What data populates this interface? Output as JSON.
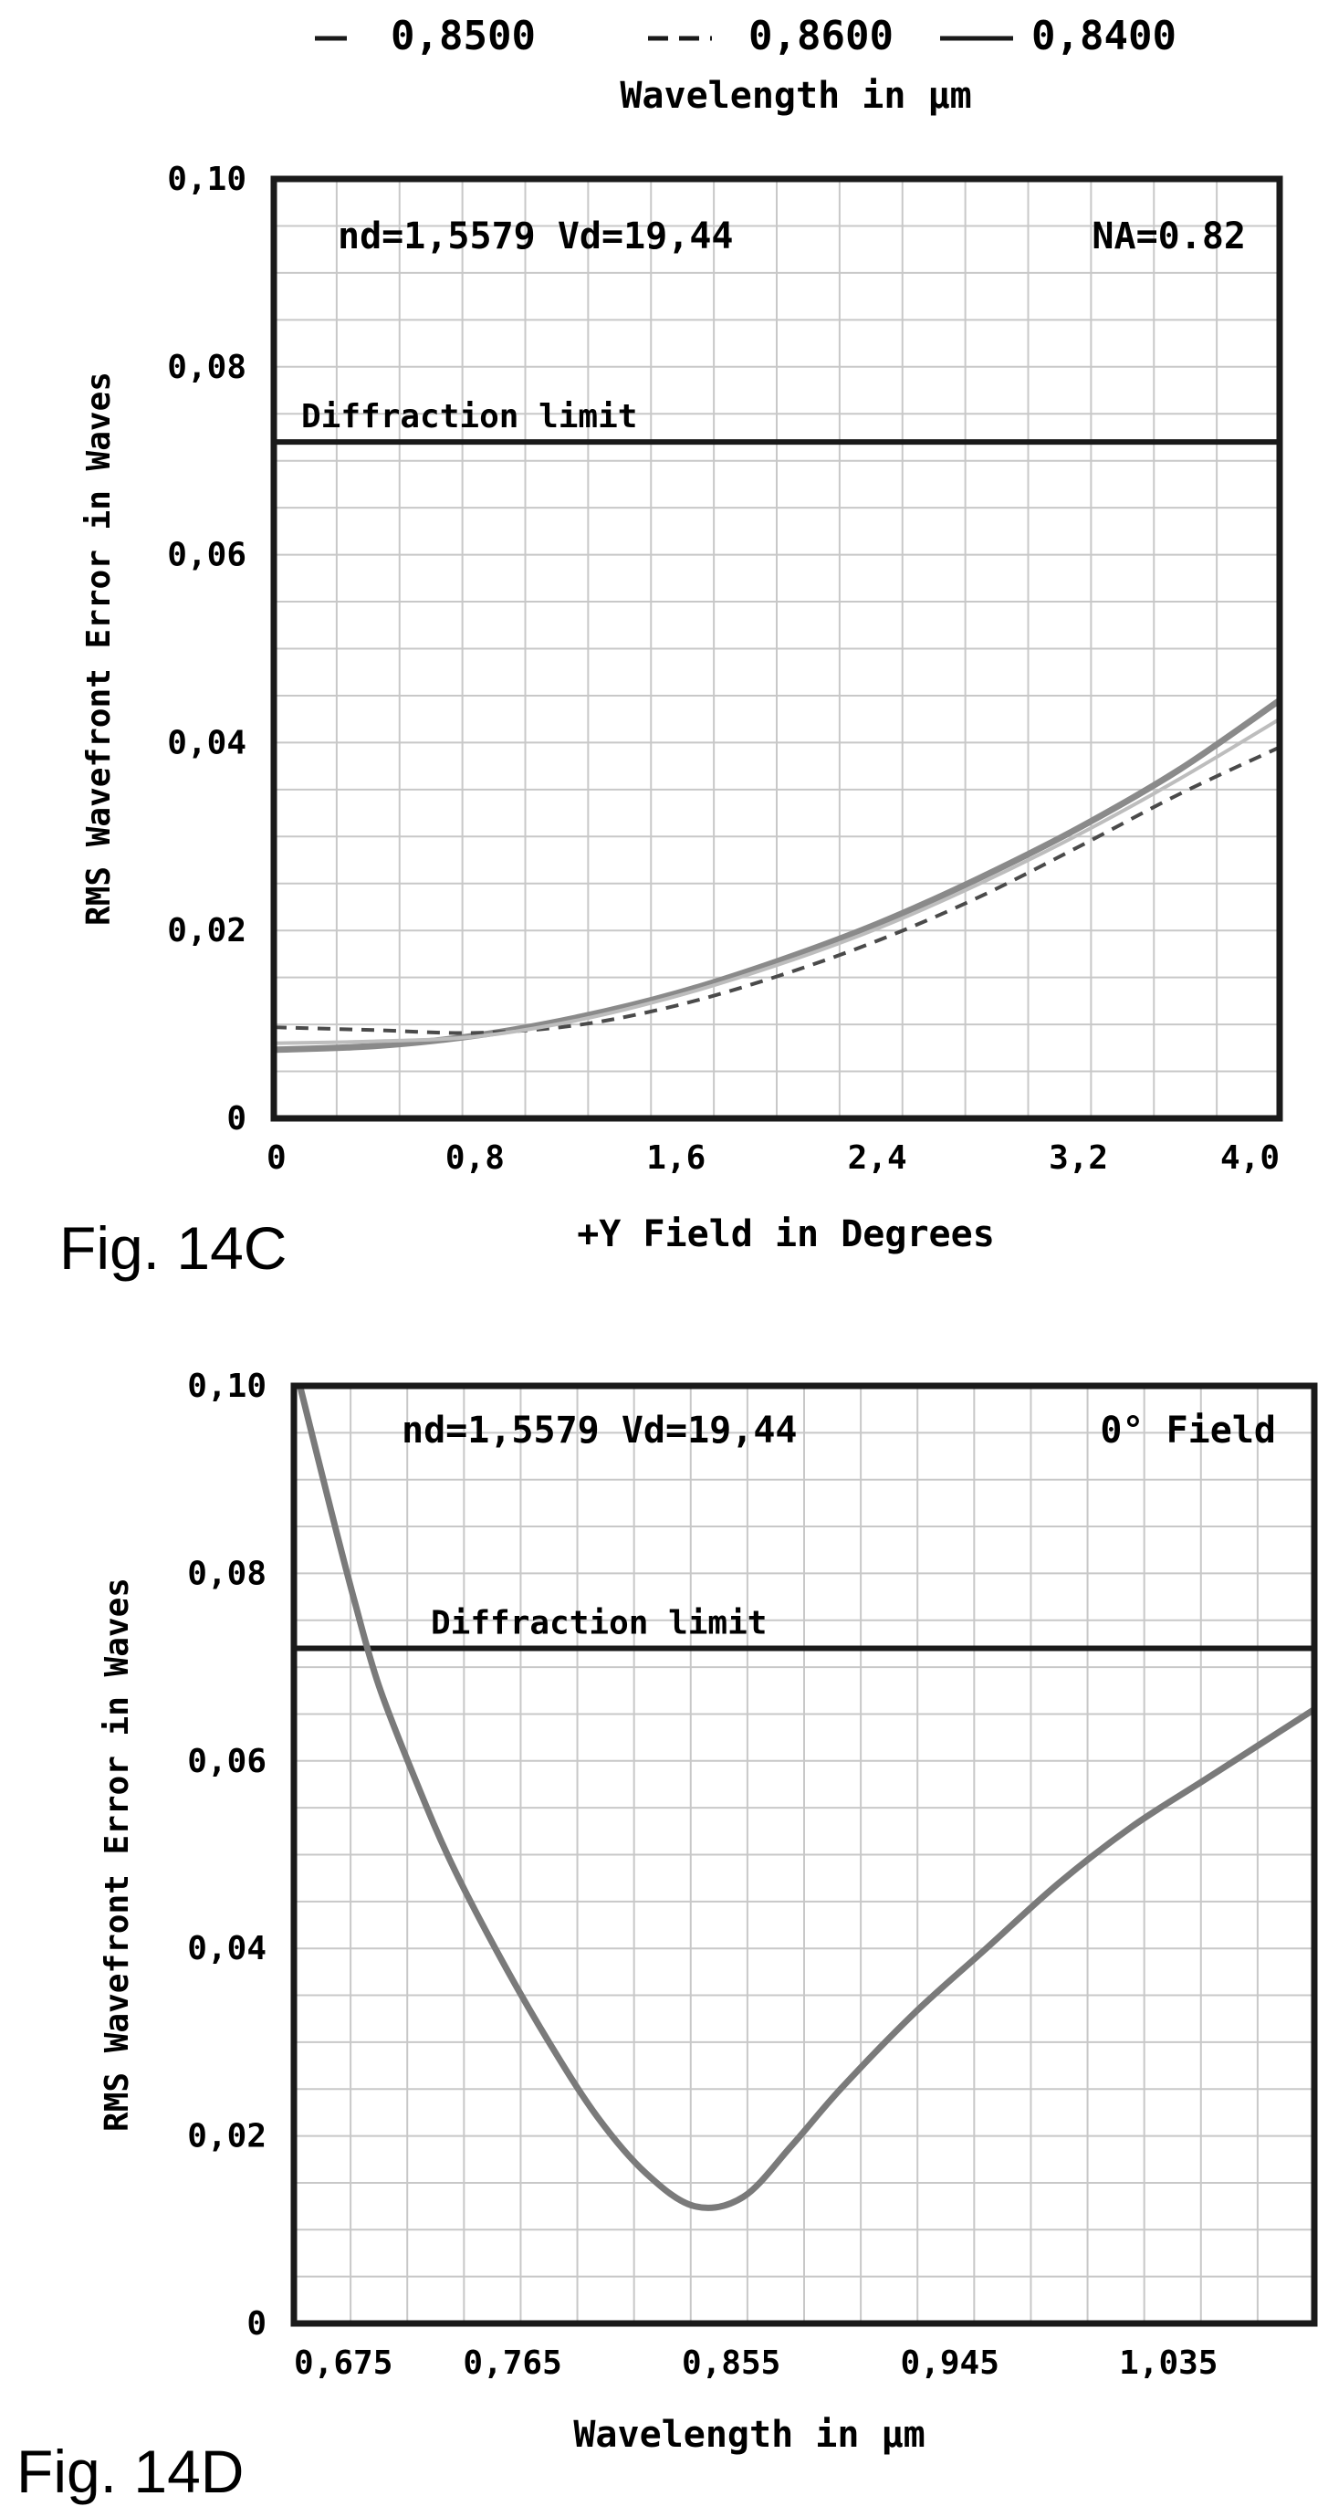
{
  "legend": {
    "entries": [
      {
        "label": "0,8500",
        "style": "short-solid"
      },
      {
        "label": "0,8600",
        "style": "dashed"
      },
      {
        "label": "0,8400",
        "style": "long-solid"
      }
    ],
    "title": "Wavelength in µm"
  },
  "chart_data": [
    {
      "type": "line",
      "figure_label": "Fig. 14C",
      "xlabel": "+Y Field in Degrees",
      "ylabel": "RMS Wavefront Error in Waves",
      "xlim": [
        0,
        4.0
      ],
      "ylim": [
        0,
        0.1
      ],
      "x_ticks": [
        "0",
        "0,8",
        "1,6",
        "2,4",
        "3,2",
        "4,0"
      ],
      "y_ticks": [
        "0",
        "0,02",
        "0,04",
        "0,06",
        "0,08",
        "0,10"
      ],
      "grid": true,
      "annotation_left": "nd=1,5579 Vd=19,44",
      "annotation_right": "NA=0.82",
      "reference_label": "Diffraction limit",
      "reference_value": 0.072,
      "series": [
        {
          "name": "0,8500",
          "color": "#8a8a8a",
          "dash": "",
          "x": [
            0,
            0.4,
            0.8,
            1.2,
            1.6,
            2.0,
            2.4,
            2.8,
            3.2,
            3.6,
            4.0
          ],
          "y": [
            0.0073,
            0.0077,
            0.0088,
            0.0107,
            0.0133,
            0.0167,
            0.0207,
            0.0255,
            0.0309,
            0.0371,
            0.0445
          ]
        },
        {
          "name": "0,8600",
          "color": "#4a4a4a",
          "dash": "14 10",
          "x": [
            0,
            0.4,
            0.8,
            1.2,
            1.6,
            2.0,
            2.4,
            2.8,
            3.2,
            3.6,
            4.0
          ],
          "y": [
            0.0097,
            0.0094,
            0.0091,
            0.0099,
            0.012,
            0.0151,
            0.0189,
            0.0235,
            0.0289,
            0.0345,
            0.0395
          ]
        },
        {
          "name": "0,8400",
          "color": "#bdbdbd",
          "dash": "",
          "x": [
            0,
            0.4,
            0.8,
            1.2,
            1.6,
            2.0,
            2.4,
            2.8,
            3.2,
            3.6,
            4.0
          ],
          "y": [
            0.008,
            0.0082,
            0.0087,
            0.0104,
            0.013,
            0.0163,
            0.0202,
            0.0249,
            0.0302,
            0.0361,
            0.0425
          ]
        }
      ]
    },
    {
      "type": "line",
      "figure_label": "Fig. 14D",
      "xlabel": "Wavelength in µm",
      "ylabel": "RMS Wavefront Error in Waves",
      "xlim": [
        0.675,
        1.095
      ],
      "ylim": [
        0,
        0.1
      ],
      "x_ticks": [
        "0,675",
        "0,765",
        "0,855",
        "0,945",
        "1,035"
      ],
      "y_ticks": [
        "0",
        "0,02",
        "0,04",
        "0,06",
        "0,08",
        "0,10"
      ],
      "grid": true,
      "annotation_left": "nd=1,5579 Vd=19,44",
      "annotation_right": "0° Field",
      "reference_label": "Diffraction limit",
      "reference_value": 0.072,
      "series": [
        {
          "color": "#7a7a7a",
          "dash": "",
          "x": [
            0.6775,
            0.69,
            0.7,
            0.71,
            0.725,
            0.74,
            0.76,
            0.78,
            0.8,
            0.82,
            0.84,
            0.86,
            0.88,
            0.9,
            0.93,
            0.96,
            0.99,
            1.02,
            1.05,
            1.08,
            1.095
          ],
          "y": [
            0.1,
            0.087,
            0.077,
            0.068,
            0.058,
            0.049,
            0.039,
            0.03,
            0.022,
            0.016,
            0.0125,
            0.0135,
            0.019,
            0.025,
            0.033,
            0.04,
            0.047,
            0.053,
            0.058,
            0.063,
            0.0655
          ]
        }
      ]
    }
  ]
}
